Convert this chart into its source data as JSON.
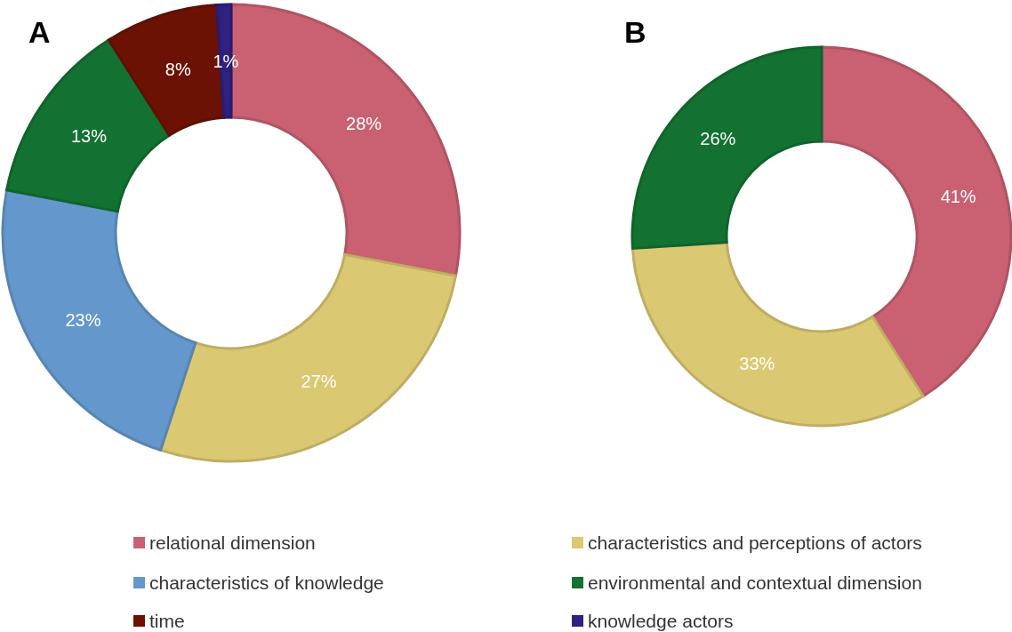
{
  "chart_data": [
    {
      "type": "donut",
      "title": "A",
      "categories": [
        "relational dimension",
        "characteristics and perceptions of actors",
        "characteristics of knowledge",
        "environmental and contextual dimension",
        "time",
        "knowledge actors"
      ],
      "values": [
        28,
        27,
        23,
        13,
        8,
        1
      ],
      "value_labels": [
        "28%",
        "27%",
        "23%",
        "13%",
        "8%",
        "1%"
      ],
      "colors": [
        "#c96172",
        "#dbc872",
        "#6498cc",
        "#137232",
        "#6b1204",
        "#2e2180"
      ],
      "legend": "bottom"
    },
    {
      "type": "donut",
      "title": "B",
      "categories": [
        null,
        null,
        null
      ],
      "values": [
        41,
        33,
        26
      ],
      "value_labels": [
        "41%",
        "33%",
        "26%"
      ],
      "colors": [
        "#c96172",
        "#dbc872",
        "#137232"
      ]
    }
  ]
}
